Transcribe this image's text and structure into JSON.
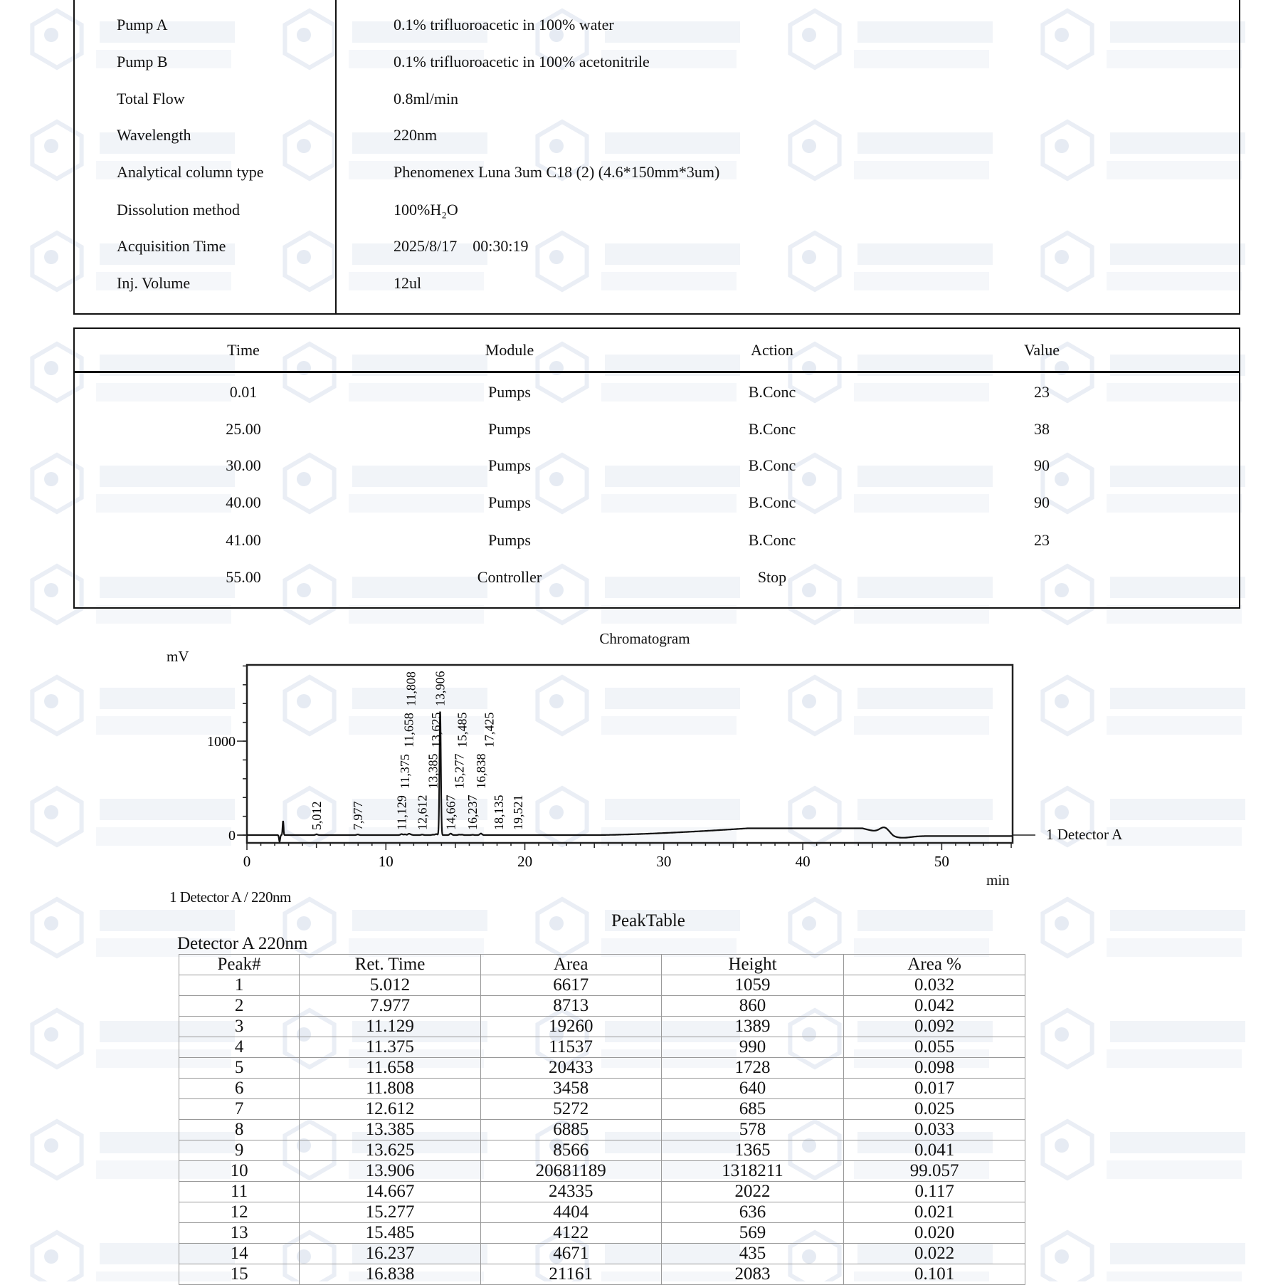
{
  "watermark": {
    "line1": "BIOTECH",
    "line2": "PEPTIDES"
  },
  "conditions": [
    {
      "label": "Pump A",
      "value": "0.1% trifluoroacetic in 100% water"
    },
    {
      "label": "Pump B",
      "value": "0.1% trifluoroacetic in 100% acetonitrile"
    },
    {
      "label": "Total Flow",
      "value": "0.8ml/min"
    },
    {
      "label": "Wavelength",
      "value": "220nm"
    },
    {
      "label": "Analytical column type",
      "value": "Phenomenex Luna 3um C18 (2) (4.6*150mm*3um)"
    },
    {
      "label": "Dissolution method",
      "value": "100%H₂O"
    },
    {
      "label": "Acquisition Time",
      "value": "2025/8/17    00:30:19"
    },
    {
      "label": "Inj. Volume",
      "value": "12ul"
    }
  ],
  "program": {
    "headers": [
      "Time",
      "Module",
      "Action",
      "Value"
    ],
    "rows": [
      [
        "0.01",
        "Pumps",
        "B.Conc",
        "23"
      ],
      [
        "25.00",
        "Pumps",
        "B.Conc",
        "38"
      ],
      [
        "30.00",
        "Pumps",
        "B.Conc",
        "90"
      ],
      [
        "40.00",
        "Pumps",
        "B.Conc",
        "90"
      ],
      [
        "41.00",
        "Pumps",
        "B.Conc",
        "23"
      ],
      [
        "55.00",
        "Controller",
        "Stop",
        ""
      ]
    ]
  },
  "chart_data": {
    "type": "line",
    "title": "Chromatogram",
    "ylabel": "mV",
    "xlabel": "min",
    "xlim": [
      0,
      55.1
    ],
    "ylim": [
      -83,
      1811
    ],
    "x_ticks": [
      "0",
      "10",
      "20",
      "30",
      "40",
      "50"
    ],
    "y_ticks": [
      "0",
      "1000"
    ],
    "series_label": "1 Detector A",
    "footer": "1 Detector A / 220nm",
    "grid": false,
    "peak_labels": [
      {
        "t": 5.012,
        "label": "5,012"
      },
      {
        "t": 7.977,
        "label": "7,977"
      },
      {
        "t": 11.129,
        "label": "11,129"
      },
      {
        "t": 11.375,
        "label": "11,375"
      },
      {
        "t": 11.658,
        "label": "11,658"
      },
      {
        "t": 11.808,
        "label": "11,808"
      },
      {
        "t": 12.612,
        "label": "12,612"
      },
      {
        "t": 13.385,
        "label": "13,385"
      },
      {
        "t": 13.625,
        "label": "13,625"
      },
      {
        "t": 13.906,
        "label": "13,906"
      },
      {
        "t": 14.667,
        "label": "14,667"
      },
      {
        "t": 15.277,
        "label": "15,277"
      },
      {
        "t": 15.485,
        "label": "15,485"
      },
      {
        "t": 16.237,
        "label": "16,237"
      },
      {
        "t": 16.838,
        "label": "16,838"
      },
      {
        "t": 17.425,
        "label": "17,425"
      },
      {
        "t": 18.135,
        "label": "18,135"
      },
      {
        "t": 19.521,
        "label": "19,521"
      }
    ],
    "main_peak": {
      "t": 13.906,
      "height_mV": 1318
    }
  },
  "peak_table": {
    "title": "PeakTable",
    "subtitle": "Detector A 220nm",
    "headers": [
      "Peak#",
      "Ret. Time",
      "Area",
      "Height",
      "Area %"
    ],
    "rows": [
      [
        "1",
        "5.012",
        "6617",
        "1059",
        "0.032"
      ],
      [
        "2",
        "7.977",
        "8713",
        "860",
        "0.042"
      ],
      [
        "3",
        "11.129",
        "19260",
        "1389",
        "0.092"
      ],
      [
        "4",
        "11.375",
        "11537",
        "990",
        "0.055"
      ],
      [
        "5",
        "11.658",
        "20433",
        "1728",
        "0.098"
      ],
      [
        "6",
        "11.808",
        "3458",
        "640",
        "0.017"
      ],
      [
        "7",
        "12.612",
        "5272",
        "685",
        "0.025"
      ],
      [
        "8",
        "13.385",
        "6885",
        "578",
        "0.033"
      ],
      [
        "9",
        "13.625",
        "8566",
        "1365",
        "0.041"
      ],
      [
        "10",
        "13.906",
        "20681189",
        "1318211",
        "99.057"
      ],
      [
        "11",
        "14.667",
        "24335",
        "2022",
        "0.117"
      ],
      [
        "12",
        "15.277",
        "4404",
        "636",
        "0.021"
      ],
      [
        "13",
        "15.485",
        "4122",
        "569",
        "0.020"
      ],
      [
        "14",
        "16.237",
        "4671",
        "435",
        "0.022"
      ],
      [
        "15",
        "16.838",
        "21161",
        "2083",
        "0.101"
      ]
    ]
  }
}
